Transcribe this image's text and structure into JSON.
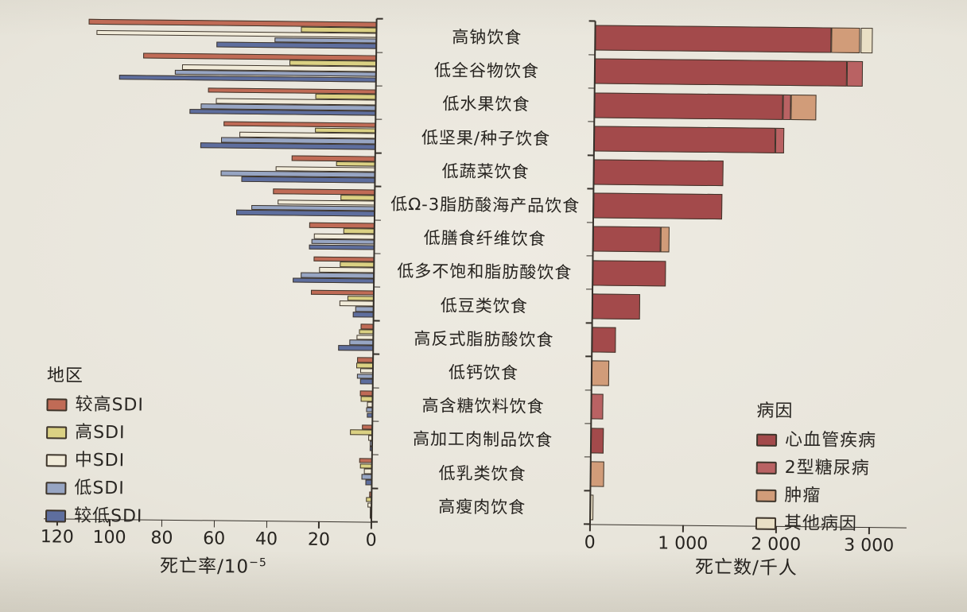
{
  "page": {
    "background": "#e8e5db",
    "description_visible_text_language": "zh"
  },
  "chart_data": [
    {
      "type": "bar",
      "panel": "left",
      "orientation": "horizontal",
      "bars_grow": "right-to-left",
      "legend_title": "地区",
      "value_axis": {
        "label_base": "死亡率/10",
        "label_sup": "−5",
        "min": 0,
        "max": 120,
        "ticks": [
          120,
          100,
          80,
          60,
          40,
          20,
          0
        ],
        "tick_labels": [
          "120",
          "100",
          "80",
          "60",
          "40",
          "20",
          "0"
        ]
      },
      "categories": [
        "高钠饮食",
        "低全谷物饮食",
        "低水果饮食",
        "低坚果/种子饮食",
        "低蔬菜饮食",
        "低Ω-3脂肪酸海产品饮食",
        "低膳食纤维饮食",
        "低多不饱和脂肪酸饮食",
        "低豆类饮食",
        "高反式脂肪酸饮食",
        "低钙饮食",
        "高含糖饮料饮食",
        "高加工肉制品饮食",
        "低乳类饮食",
        "高瘦肉饮食"
      ],
      "series": [
        {
          "name": "较高SDI",
          "color": "#c06b56",
          "values": [
            110,
            89,
            64,
            58,
            32,
            39,
            25,
            23,
            24,
            5,
            6,
            5,
            4,
            5,
            1
          ]
        },
        {
          "name": "高SDI",
          "color": "#dbd183",
          "values": [
            29,
            33,
            23,
            23,
            15,
            13,
            12,
            13,
            10,
            5.5,
            6.5,
            4.5,
            8.5,
            4.5,
            2
          ]
        },
        {
          "name": "中SDI",
          "color": "#f1ebd9",
          "values": [
            107,
            74,
            61,
            52,
            38,
            37,
            23,
            21,
            13,
            6.5,
            5,
            2,
            1.5,
            3,
            1.5
          ]
        },
        {
          "name": "低SDI",
          "color": "#97a5c3",
          "values": [
            39,
            77,
            67,
            59,
            59,
            47,
            24,
            28,
            7,
            9,
            6,
            2.5,
            1,
            4,
            0.5
          ]
        },
        {
          "name": "较低SDI",
          "color": "#5e6e9e",
          "values": [
            61,
            98,
            71,
            67,
            51,
            53,
            25,
            31,
            8,
            13.5,
            5,
            2,
            1,
            2.5,
            0.5
          ]
        }
      ]
    },
    {
      "type": "stacked-bar",
      "panel": "right",
      "orientation": "horizontal",
      "bars_grow": "left-to-right",
      "legend_title": "病因",
      "value_axis": {
        "label": "死亡数/千人",
        "min": 0,
        "max": 3350,
        "ticks": [
          0,
          1000,
          2000,
          3000
        ],
        "tick_labels": [
          "0",
          "1 000",
          "2 000",
          "3 000"
        ]
      },
      "categories": [
        "高钠饮食",
        "低全谷物饮食",
        "低水果饮食",
        "低坚果/种子饮食",
        "低蔬菜饮食",
        "低Ω-3脂肪酸海产品饮食",
        "低膳食纤维饮食",
        "低多不饱和脂肪酸饮食",
        "低豆类饮食",
        "高反式脂肪酸饮食",
        "低钙饮食",
        "高含糖饮料饮食",
        "高加工肉制品饮食",
        "低乳类饮食",
        "高瘦肉饮食"
      ],
      "series": [
        {
          "name": "心血管疾病",
          "color": "#a34a4b",
          "values": [
            2540,
            2710,
            2025,
            1950,
            1390,
            1385,
            725,
            785,
            515,
            260,
            0,
            0,
            140,
            0,
            0
          ]
        },
        {
          "name": "2型糖尿病",
          "color": "#b96263",
          "values": [
            0,
            170,
            85,
            90,
            0,
            0,
            0,
            0,
            0,
            0,
            0,
            125,
            0,
            0,
            0
          ]
        },
        {
          "name": "肿瘤",
          "color": "#d19c79",
          "values": [
            310,
            0,
            275,
            0,
            0,
            0,
            100,
            0,
            0,
            0,
            185,
            0,
            0,
            145,
            0
          ]
        },
        {
          "name": "其他病因",
          "color": "#e9dfc5",
          "values": [
            130,
            0,
            0,
            0,
            0,
            0,
            0,
            0,
            0,
            0,
            0,
            0,
            0,
            0,
            35
          ]
        }
      ]
    }
  ]
}
